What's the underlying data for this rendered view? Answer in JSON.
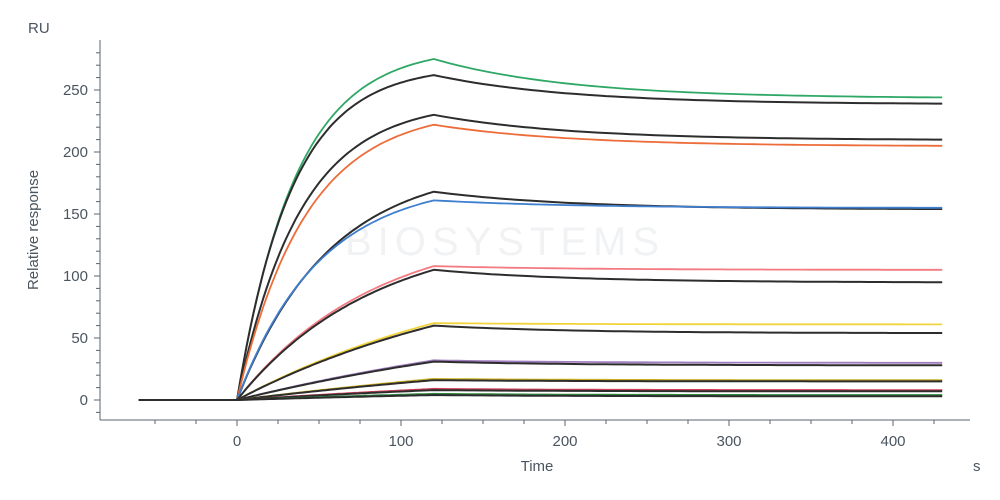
{
  "chart_data": {
    "type": "line",
    "title": "",
    "xlabel": "Time",
    "ylabel": "Relative response",
    "x_unit": "s",
    "y_unit": "RU",
    "xlim": [
      -60,
      440
    ],
    "ylim": [
      -12,
      290
    ],
    "x_ticks": [
      0,
      100,
      200,
      300,
      400
    ],
    "y_ticks": [
      0,
      50,
      100,
      150,
      200,
      250
    ],
    "grid": false,
    "legend": "none",
    "watermark_text": "BIOSYSTEMS",
    "sensorgram": {
      "baseline_start_s": -60,
      "injection_start_s": 0,
      "injection_end_s": 120,
      "end_s": 430
    },
    "series": [
      {
        "role": "measured",
        "color": "#2fa866",
        "peak": 275,
        "final": 244,
        "k": 0.028
      },
      {
        "role": "fit",
        "color": "#2d2d2d",
        "peak": 262,
        "final": 239,
        "k": 0.03
      },
      {
        "role": "fit",
        "color": "#2d2d2d",
        "peak": 230,
        "final": 210,
        "k": 0.026
      },
      {
        "role": "measured",
        "color": "#ec6d3a",
        "peak": 222,
        "final": 205,
        "k": 0.024
      },
      {
        "role": "fit",
        "color": "#2d2d2d",
        "peak": 168,
        "final": 154,
        "k": 0.018
      },
      {
        "role": "measured",
        "color": "#3f7fcf",
        "peak": 161,
        "final": 155,
        "k": 0.02
      },
      {
        "role": "measured",
        "color": "#f27a80",
        "peak": 108,
        "final": 105,
        "k": 0.012
      },
      {
        "role": "fit",
        "color": "#2d2d2d",
        "peak": 105,
        "final": 95,
        "k": 0.012
      },
      {
        "role": "measured",
        "color": "#f0d43c",
        "peak": 62,
        "final": 61,
        "k": 0.006
      },
      {
        "role": "fit",
        "color": "#2d2d2d",
        "peak": 60,
        "final": 54,
        "k": 0.006
      },
      {
        "role": "measured",
        "color": "#a07cc0",
        "peak": 32,
        "final": 30,
        "k": 0.004
      },
      {
        "role": "fit",
        "color": "#2d2d2d",
        "peak": 31,
        "final": 28,
        "k": 0.004
      },
      {
        "role": "measured",
        "color": "#c9b020",
        "peak": 17,
        "final": 16,
        "k": 0.003
      },
      {
        "role": "fit",
        "color": "#2d2d2d",
        "peak": 16,
        "final": 15,
        "k": 0.003
      },
      {
        "role": "measured",
        "color": "#d2405a",
        "peak": 9,
        "final": 8,
        "k": 0.003
      },
      {
        "role": "fit",
        "color": "#2d2d2d",
        "peak": 8,
        "final": 7,
        "k": 0.003
      },
      {
        "role": "measured",
        "color": "#2e8b3e",
        "peak": 5,
        "final": 4,
        "k": 0.003
      },
      {
        "role": "fit",
        "color": "#2d2d2d",
        "peak": 4,
        "final": 3,
        "k": 0.003
      }
    ]
  }
}
